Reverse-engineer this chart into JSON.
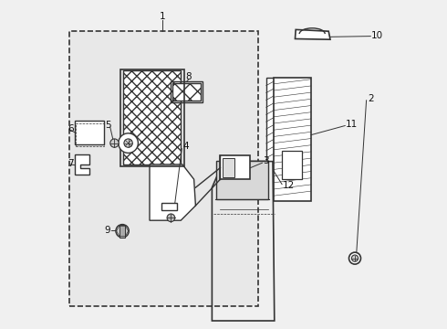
{
  "bg_color": "#f0f0f0",
  "line_color": "#333333",
  "text_color": "#111111",
  "fig_width": 4.9,
  "fig_height": 3.6,
  "dpi": 100
}
